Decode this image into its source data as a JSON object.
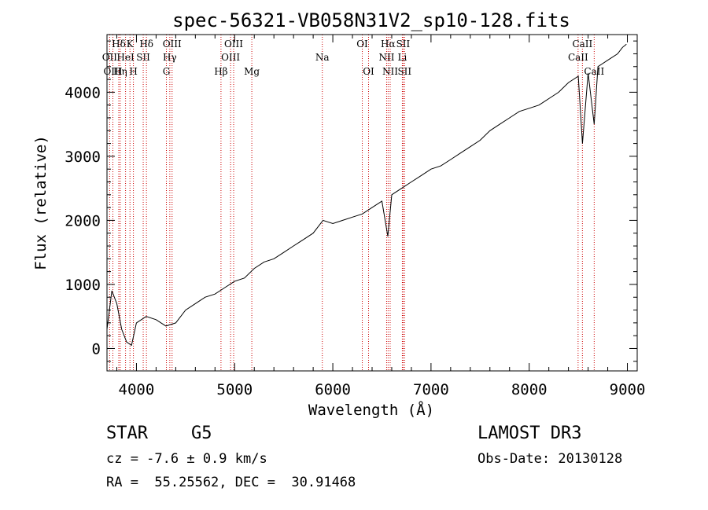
{
  "chart_data": {
    "type": "line",
    "title": "spec-56321-VB058N31V2_sp10-128.fits",
    "xlabel": "Wavelength (Å)",
    "ylabel": "Flux (relative)",
    "xlim": [
      3700,
      9100
    ],
    "ylim": [
      -350,
      4900
    ],
    "xticks": [
      4000,
      5000,
      6000,
      7000,
      8000,
      9000
    ],
    "yticks": [
      0,
      1000,
      2000,
      3000,
      4000
    ],
    "series": [
      {
        "name": "spectrum",
        "color": "#000000",
        "x": [
          3700,
          3750,
          3800,
          3850,
          3900,
          3950,
          4000,
          4100,
          4200,
          4300,
          4400,
          4500,
          4600,
          4700,
          4800,
          4900,
          5000,
          5100,
          5200,
          5300,
          5400,
          5500,
          5600,
          5700,
          5800,
          5900,
          6000,
          6100,
          6200,
          6300,
          6400,
          6500,
          6560,
          6600,
          6700,
          6800,
          6900,
          7000,
          7100,
          7200,
          7300,
          7400,
          7500,
          7600,
          7700,
          7800,
          7900,
          8000,
          8100,
          8200,
          8300,
          8400,
          8500,
          8542,
          8600,
          8662,
          8700,
          8800,
          8900,
          8950,
          8990
        ],
        "y": [
          300,
          900,
          700,
          300,
          100,
          50,
          400,
          500,
          450,
          350,
          400,
          600,
          700,
          800,
          850,
          950,
          1050,
          1100,
          1250,
          1350,
          1400,
          1500,
          1600,
          1700,
          1800,
          2000,
          1950,
          2000,
          2050,
          2100,
          2200,
          2300,
          1750,
          2400,
          2500,
          2600,
          2700,
          2800,
          2850,
          2950,
          3050,
          3150,
          3250,
          3400,
          3500,
          3600,
          3700,
          3750,
          3800,
          3900,
          4000,
          4150,
          4250,
          3200,
          4300,
          3500,
          4400,
          4500,
          4600,
          4700,
          4750
        ]
      }
    ],
    "line_color": "#cc0000",
    "spectral_lines": [
      {
        "label": "Hδ",
        "x": 3820,
        "row": 0
      },
      {
        "label": "K",
        "x": 3934,
        "row": 0
      },
      {
        "label": "Hδ",
        "x": 4102,
        "row": 0
      },
      {
        "label": "OII",
        "x": 3727,
        "row": 1
      },
      {
        "label": "HeI",
        "x": 3889,
        "row": 1
      },
      {
        "label": "SII",
        "x": 4069,
        "row": 1
      },
      {
        "label": "OIII",
        "x": 3760,
        "row": 2
      },
      {
        "label": "Hη",
        "x": 3835,
        "row": 2
      },
      {
        "label": "H",
        "x": 3969,
        "row": 2
      },
      {
        "label": "OIII",
        "x": 4363,
        "row": 0
      },
      {
        "label": "Hγ",
        "x": 4340,
        "row": 1
      },
      {
        "label": "G",
        "x": 4305,
        "row": 2
      },
      {
        "label": "Hβ",
        "x": 4861,
        "row": 2
      },
      {
        "label": "OIII",
        "x": 4990,
        "row": 0
      },
      {
        "label": "OIII",
        "x": 4959,
        "row": 1
      },
      {
        "label": "Mg",
        "x": 5175,
        "row": 2
      },
      {
        "label": "Na",
        "x": 5893,
        "row": 1
      },
      {
        "label": "OI",
        "x": 6300,
        "row": 0
      },
      {
        "label": "OI",
        "x": 6364,
        "row": 2
      },
      {
        "label": "Hα",
        "x": 6563,
        "row": 0
      },
      {
        "label": "SII",
        "x": 6716,
        "row": 0
      },
      {
        "label": "NII",
        "x": 6548,
        "row": 1
      },
      {
        "label": "Li",
        "x": 6708,
        "row": 1
      },
      {
        "label": "NII",
        "x": 6584,
        "row": 2
      },
      {
        "label": "SII",
        "x": 6731,
        "row": 2
      },
      {
        "label": "CaII",
        "x": 8542,
        "row": 0
      },
      {
        "label": "CaII",
        "x": 8498,
        "row": 1
      },
      {
        "label": "CaII",
        "x": 8662,
        "row": 2
      }
    ]
  },
  "info": {
    "object_class": "STAR",
    "subclass": "G5",
    "survey": "LAMOST DR3",
    "velocity": "cz = -7.6 ± 0.9 km/s",
    "obs_date": "Obs-Date: 20130128",
    "coords": "RA =  55.25562, DEC =  30.91468"
  }
}
